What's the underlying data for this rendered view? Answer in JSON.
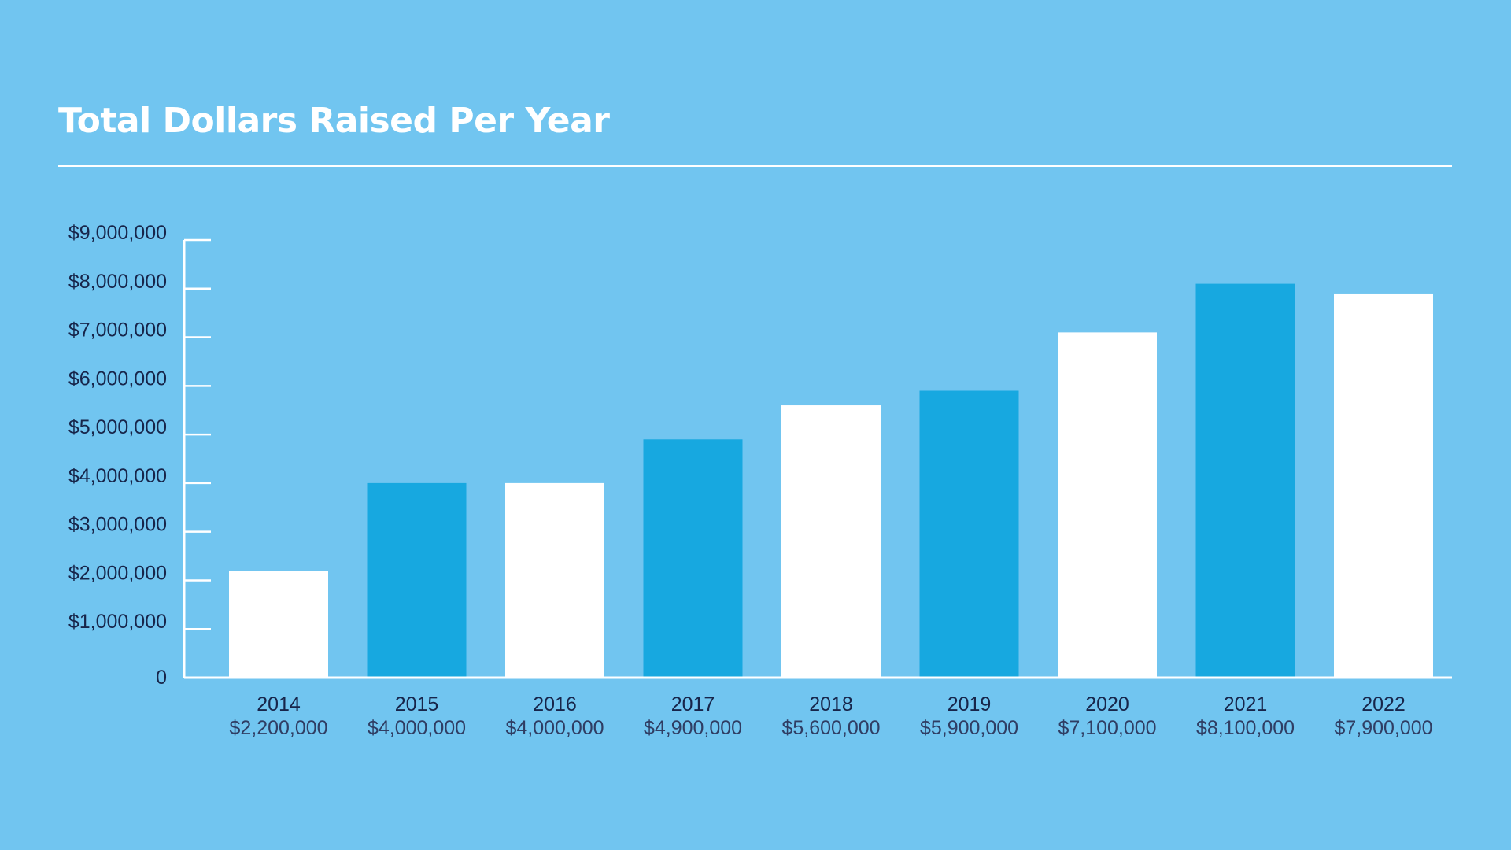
{
  "chart_data": {
    "type": "bar",
    "title": "Total Dollars Raised Per Year",
    "xlabel": "",
    "ylabel": "",
    "categories": [
      "2014",
      "2015",
      "2016",
      "2017",
      "2018",
      "2019",
      "2020",
      "2021",
      "2022"
    ],
    "values": [
      2200000,
      4000000,
      4000000,
      4900000,
      5600000,
      5900000,
      7100000,
      8100000,
      7900000
    ],
    "value_labels": [
      "$2,200,000",
      "$4,000,000",
      "$4,000,000",
      "$4,900,000",
      "$5,600,000",
      "$5,900,000",
      "$7,100,000",
      "$8,100,000",
      "$7,900,000"
    ],
    "ylim": [
      0,
      9000000
    ],
    "y_ticks": [
      {
        "value": 0,
        "label": "0"
      },
      {
        "value": 1000000,
        "label": "$1,000,000"
      },
      {
        "value": 2000000,
        "label": "$2,000,000"
      },
      {
        "value": 3000000,
        "label": "$3,000,000"
      },
      {
        "value": 4000000,
        "label": "$4,000,000"
      },
      {
        "value": 5000000,
        "label": "$5,000,000"
      },
      {
        "value": 6000000,
        "label": "$6,000,000"
      },
      {
        "value": 7000000,
        "label": "$7,000,000"
      },
      {
        "value": 8000000,
        "label": "$8,000,000"
      },
      {
        "value": 9000000,
        "label": "$9,000,000"
      }
    ],
    "grid": false,
    "legend": "none",
    "colors": {
      "background": "#71c5f0",
      "bar_white": "#ffffff",
      "bar_blue": "#17a8e0",
      "axis": "#ffffff",
      "text": "#17254a"
    },
    "bar_color_pattern": [
      "white",
      "blue"
    ]
  }
}
